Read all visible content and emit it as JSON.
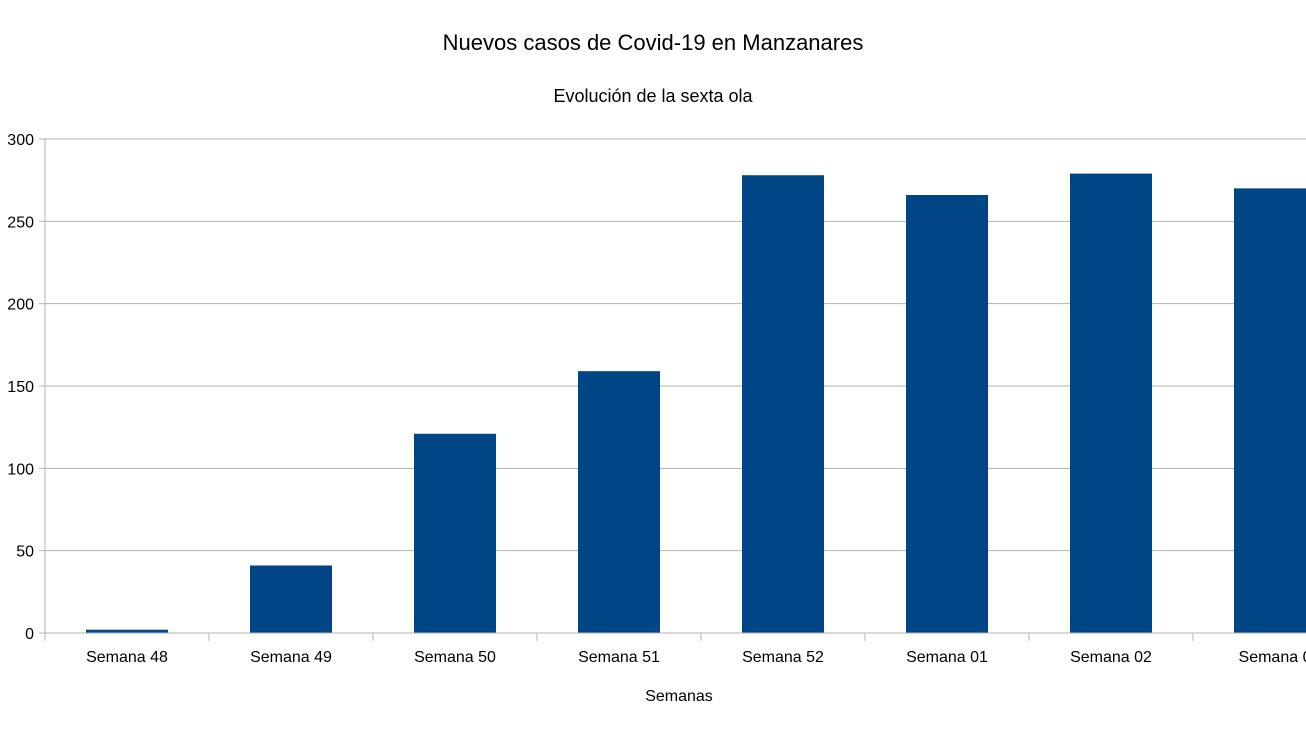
{
  "chart_data": {
    "type": "bar",
    "title": "Nuevos casos de Covid-19 en Manzanares",
    "subtitle": "Evolución de la sexta ola",
    "xlabel": "Semanas",
    "ylabel": "",
    "categories": [
      "Semana 48",
      "Semana 49",
      "Semana 50",
      "Semana 51",
      "Semana 52",
      "Semana 01",
      "Semana 02",
      "Semana 0"
    ],
    "values": [
      2,
      41,
      121,
      159,
      278,
      266,
      279,
      270
    ],
    "ylim": [
      0,
      300
    ],
    "yticks": [
      "0",
      "50",
      "100",
      "150",
      "200",
      "250",
      "300"
    ],
    "grid": true,
    "legend": "none",
    "bar_color": "#004586",
    "grid_color": "#b3b3b3"
  }
}
